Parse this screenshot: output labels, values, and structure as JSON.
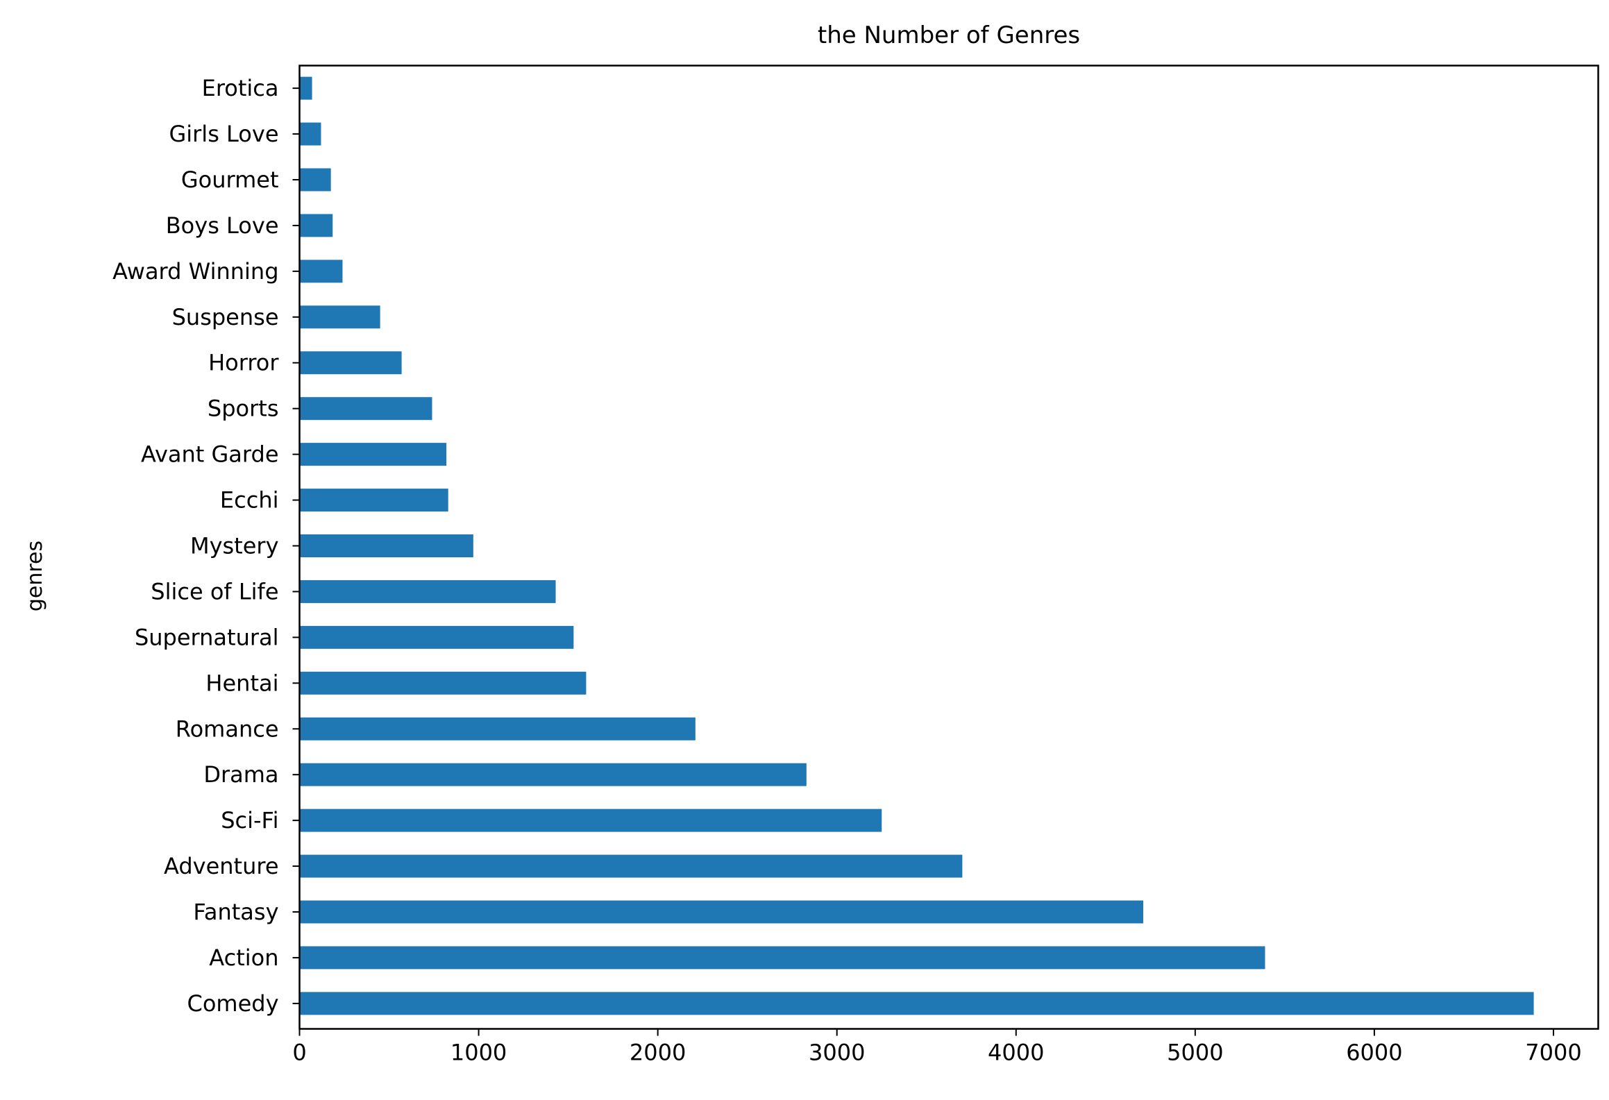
{
  "chart_data": {
    "type": "bar",
    "orientation": "horizontal",
    "title": "the Number of Genres",
    "xlabel": "",
    "ylabel": "genres",
    "xlim": [
      0,
      7250
    ],
    "xticks": [
      0,
      1000,
      2000,
      3000,
      4000,
      5000,
      6000,
      7000
    ],
    "grid": false,
    "bar_color": "#1f77b4",
    "categories": [
      "Comedy",
      "Action",
      "Fantasy",
      "Adventure",
      "Sci-Fi",
      "Drama",
      "Romance",
      "Hentai",
      "Supernatural",
      "Slice of Life",
      "Mystery",
      "Ecchi",
      "Avant Garde",
      "Sports",
      "Horror",
      "Suspense",
      "Award Winning",
      "Boys Love",
      "Gourmet",
      "Girls Love",
      "Erotica"
    ],
    "values": [
      6890,
      5390,
      4710,
      3700,
      3250,
      2830,
      2210,
      1600,
      1530,
      1430,
      970,
      830,
      820,
      740,
      570,
      450,
      240,
      185,
      175,
      120,
      70
    ]
  }
}
